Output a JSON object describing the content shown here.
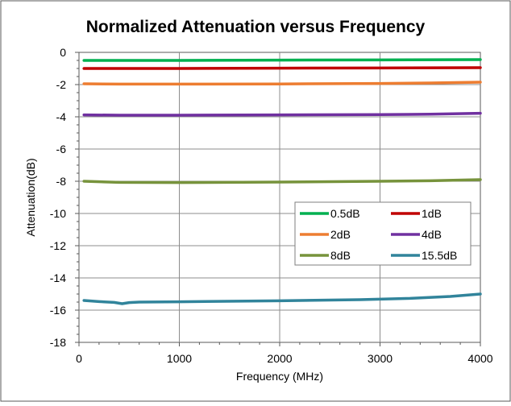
{
  "chart_data": {
    "type": "line",
    "title": "Normalized Attenuation versus Frequency",
    "xlabel": "Frequency (MHz)",
    "ylabel": "Attenuation(dB)",
    "xlim": [
      0,
      4000
    ],
    "ylim": [
      -18,
      0
    ],
    "x_ticks": [
      "0",
      "1000",
      "2000",
      "3000",
      "4000"
    ],
    "y_ticks": [
      "0",
      "-2",
      "-4",
      "-6",
      "-8",
      "-10",
      "-12",
      "-14",
      "-16",
      "-18"
    ],
    "x_tick_values": [
      0,
      1000,
      2000,
      3000,
      4000
    ],
    "y_tick_values": [
      0,
      -2,
      -4,
      -6,
      -8,
      -10,
      -12,
      -14,
      -16,
      -18
    ],
    "grid": true,
    "legend_position": "right-middle",
    "series": [
      {
        "name": "0.5dB",
        "color": "#00b050",
        "x": [
          50,
          400,
          1000,
          2000,
          3000,
          4000
        ],
        "y": [
          -0.5,
          -0.5,
          -0.5,
          -0.48,
          -0.47,
          -0.45
        ]
      },
      {
        "name": "1dB",
        "color": "#c00000",
        "x": [
          50,
          400,
          1000,
          2000,
          3000,
          4000
        ],
        "y": [
          -1.0,
          -1.0,
          -1.0,
          -0.98,
          -0.97,
          -0.95
        ]
      },
      {
        "name": "2dB",
        "color": "#ed7d31",
        "x": [
          50,
          400,
          1000,
          2000,
          3000,
          3500,
          4000
        ],
        "y": [
          -1.95,
          -1.97,
          -1.97,
          -1.96,
          -1.93,
          -1.9,
          -1.85
        ]
      },
      {
        "name": "4dB",
        "color": "#7030a0",
        "x": [
          50,
          400,
          1000,
          2000,
          3000,
          3500,
          4000
        ],
        "y": [
          -3.88,
          -3.9,
          -3.9,
          -3.88,
          -3.86,
          -3.84,
          -3.78
        ]
      },
      {
        "name": "8dB",
        "color": "#77933c",
        "x": [
          50,
          400,
          1000,
          2000,
          3000,
          3500,
          4000
        ],
        "y": [
          -8.0,
          -8.07,
          -8.08,
          -8.05,
          -8.0,
          -7.97,
          -7.9
        ]
      },
      {
        "name": "15.5dB",
        "color": "#31849b",
        "x": [
          50,
          200,
          350,
          430,
          500,
          600,
          1000,
          2000,
          2800,
          3300,
          3700,
          4000
        ],
        "y": [
          -15.4,
          -15.47,
          -15.52,
          -15.6,
          -15.53,
          -15.5,
          -15.48,
          -15.42,
          -15.35,
          -15.27,
          -15.15,
          -15.0
        ]
      }
    ]
  }
}
